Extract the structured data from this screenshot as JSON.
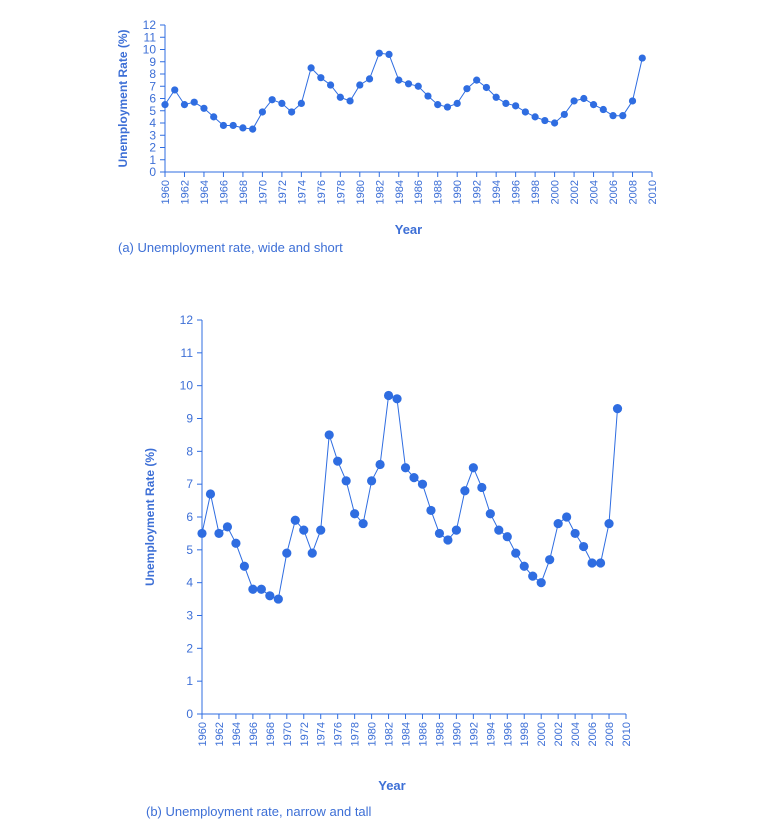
{
  "colors": {
    "series": "#2f6de1",
    "text": "#3d6fd6"
  },
  "chart_data": [
    {
      "type": "line",
      "title": "",
      "caption": "(a) Unemployment rate, wide and short",
      "xlabel": "Year",
      "ylabel": "Unemployment Rate (%)",
      "xlim": [
        1960,
        2010
      ],
      "ylim": [
        0,
        12
      ],
      "x_ticks": [
        "1960",
        "1962",
        "1964",
        "1966",
        "1968",
        "1970",
        "1972",
        "1974",
        "1976",
        "1978",
        "1980",
        "1982",
        "1984",
        "1986",
        "1988",
        "1990",
        "1992",
        "1994",
        "1996",
        "1998",
        "2000",
        "2002",
        "2004",
        "2006",
        "2008",
        "2010"
      ],
      "y_ticks": [
        "0",
        "1",
        "2",
        "3",
        "4",
        "5",
        "6",
        "7",
        "8",
        "9",
        "10",
        "11",
        "12"
      ],
      "grid": false,
      "markers": true,
      "series": [
        {
          "x": [
            1960,
            1961,
            1962,
            1963,
            1964,
            1965,
            1966,
            1967,
            1968,
            1969,
            1970,
            1971,
            1972,
            1973,
            1974,
            1975,
            1976,
            1977,
            1978,
            1979,
            1980,
            1981,
            1982,
            1983,
            1984,
            1985,
            1986,
            1987,
            1988,
            1989,
            1990,
            1991,
            1992,
            1993,
            1994,
            1995,
            1996,
            1997,
            1998,
            1999,
            2000,
            2001,
            2002,
            2003,
            2004,
            2005,
            2006,
            2007,
            2008,
            2009
          ],
          "values": [
            5.5,
            6.7,
            5.5,
            5.7,
            5.2,
            4.5,
            3.8,
            3.8,
            3.6,
            3.5,
            4.9,
            5.9,
            5.6,
            4.9,
            5.6,
            8.5,
            7.7,
            7.1,
            6.1,
            5.8,
            7.1,
            7.6,
            9.7,
            9.6,
            7.5,
            7.2,
            7.0,
            6.2,
            5.5,
            5.3,
            5.6,
            6.8,
            7.5,
            6.9,
            6.1,
            5.6,
            5.4,
            4.9,
            4.5,
            4.2,
            4.0,
            4.7,
            5.8,
            6.0,
            5.5,
            5.1,
            4.6,
            4.6,
            5.8,
            9.3
          ]
        }
      ]
    },
    {
      "type": "line",
      "title": "",
      "caption": "(b) Unemployment rate, narrow and tall",
      "xlabel": "Year",
      "ylabel": "Unemployment Rate (%)",
      "xlim": [
        1960,
        2010
      ],
      "ylim": [
        0,
        12
      ],
      "x_ticks": [
        "1960",
        "1962",
        "1964",
        "1966",
        "1968",
        "1970",
        "1972",
        "1974",
        "1976",
        "1978",
        "1980",
        "1982",
        "1984",
        "1986",
        "1988",
        "1990",
        "1992",
        "1994",
        "1996",
        "1998",
        "2000",
        "2002",
        "2004",
        "2006",
        "2008",
        "2010"
      ],
      "y_ticks": [
        "0",
        "1",
        "2",
        "3",
        "4",
        "5",
        "6",
        "7",
        "8",
        "9",
        "10",
        "11",
        "12"
      ],
      "grid": false,
      "markers": true,
      "series": [
        {
          "x": [
            1960,
            1961,
            1962,
            1963,
            1964,
            1965,
            1966,
            1967,
            1968,
            1969,
            1970,
            1971,
            1972,
            1973,
            1974,
            1975,
            1976,
            1977,
            1978,
            1979,
            1980,
            1981,
            1982,
            1983,
            1984,
            1985,
            1986,
            1987,
            1988,
            1989,
            1990,
            1991,
            1992,
            1993,
            1994,
            1995,
            1996,
            1997,
            1998,
            1999,
            2000,
            2001,
            2002,
            2003,
            2004,
            2005,
            2006,
            2007,
            2008,
            2009
          ],
          "values": [
            5.5,
            6.7,
            5.5,
            5.7,
            5.2,
            4.5,
            3.8,
            3.8,
            3.6,
            3.5,
            4.9,
            5.9,
            5.6,
            4.9,
            5.6,
            8.5,
            7.7,
            7.1,
            6.1,
            5.8,
            7.1,
            7.6,
            9.7,
            9.6,
            7.5,
            7.2,
            7.0,
            6.2,
            5.5,
            5.3,
            5.6,
            6.8,
            7.5,
            6.9,
            6.1,
            5.6,
            5.4,
            4.9,
            4.5,
            4.2,
            4.0,
            4.7,
            5.8,
            6.0,
            5.5,
            5.1,
            4.6,
            4.6,
            5.8,
            9.3
          ]
        }
      ]
    }
  ]
}
